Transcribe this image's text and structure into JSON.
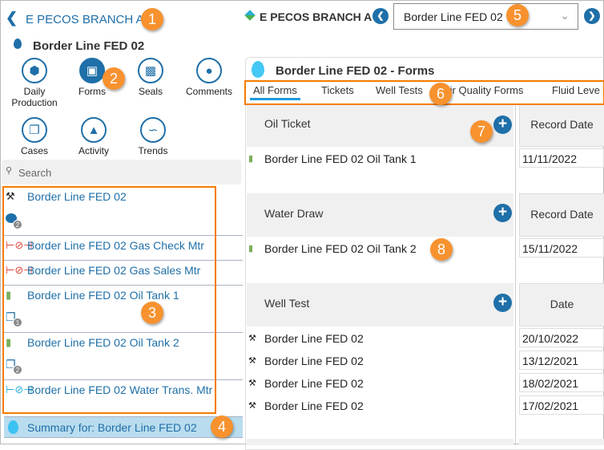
{
  "left": {
    "back_label": "E PECOS BRANCH A",
    "location_title": "Border Line FED 02",
    "nav": [
      {
        "label": "Daily Production",
        "icon": "hexagon-icon"
      },
      {
        "label": "Forms",
        "icon": "ticket-icon",
        "active": true
      },
      {
        "label": "Seals",
        "icon": "lock-icon"
      },
      {
        "label": "Comments",
        "icon": "comment-icon"
      },
      {
        "label": "Cases",
        "icon": "clipboard-icon"
      },
      {
        "label": "Activity",
        "icon": "bell-icon"
      },
      {
        "label": "Trends",
        "icon": "chart-icon"
      }
    ],
    "search_placeholder": "Search",
    "items": [
      {
        "label": "Border Line FED 02",
        "icon": "pumpjack-icon",
        "sub_icon": "comment-icon",
        "badge": "2"
      },
      {
        "label": "Border Line FED 02 Gas Check Mtr",
        "icon": "gas-meter-icon"
      },
      {
        "label": "Border Line FED 02 Gas Sales Mtr",
        "icon": "gas-meter-icon"
      },
      {
        "label": "Border Line FED 02 Oil Tank 1",
        "icon": "tank-icon",
        "sub_icon": "clipboard-icon",
        "badge": "1"
      },
      {
        "label": "Border Line FED 02 Oil Tank 2",
        "icon": "tank-icon",
        "sub_icon": "clipboard-icon",
        "badge": "2"
      },
      {
        "label": "Border Line FED 02 Water Trans. Mtr",
        "icon": "water-meter-icon"
      }
    ],
    "summary_label": "Summary for: Border Line FED 02"
  },
  "header": {
    "branch": "E PECOS BRANCH A",
    "selected_location": "Border Line FED 02"
  },
  "forms": {
    "title": "Border Line FED 02 - Forms",
    "tabs": [
      "All Forms",
      "Tickets",
      "Well Tests",
      "Air Quality Forms",
      "Fluid Leve"
    ],
    "active_tab": "All Forms",
    "sections": [
      {
        "name": "Oil Ticket",
        "column": "Record Date",
        "rows": [
          {
            "label": "Border Line FED 02 Oil Tank 1",
            "date": "11/11/2022"
          }
        ]
      },
      {
        "name": "Water Draw",
        "column": "Record Date",
        "rows": [
          {
            "label": "Border Line FED 02 Oil Tank 2",
            "date": "15/11/2022"
          }
        ]
      },
      {
        "name": "Well Test",
        "column": "Date",
        "rows": [
          {
            "label": "Border Line FED 02",
            "date": "20/10/2022"
          },
          {
            "label": "Border Line FED 02",
            "date": "13/12/2021"
          },
          {
            "label": "Border Line FED 02",
            "date": "18/02/2021"
          },
          {
            "label": "Border Line FED 02",
            "date": "17/02/2021"
          }
        ]
      }
    ]
  },
  "callouts": [
    "1",
    "2",
    "3",
    "4",
    "5",
    "6",
    "7",
    "8"
  ],
  "colors": {
    "accent": "#1f6fa8",
    "callout": "#f7922f",
    "highlight_box": "#f57c00",
    "summary_bg": "#b9dcef"
  }
}
